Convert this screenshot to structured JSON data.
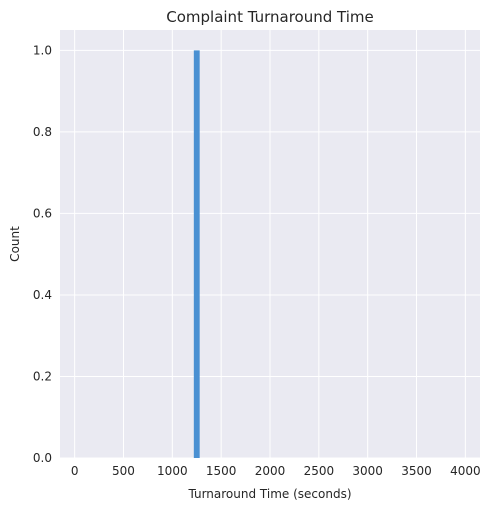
{
  "chart_data": {
    "type": "bar",
    "title": "Complaint Turnaround Time",
    "xlabel": "Turnaround Time (seconds)",
    "ylabel": "Count",
    "xlim": [
      -150,
      4150
    ],
    "ylim": [
      0,
      1.05
    ],
    "x_ticks": [
      0,
      500,
      1000,
      1500,
      2000,
      2500,
      3000,
      3500,
      4000
    ],
    "y_ticks": [
      0.0,
      0.2,
      0.4,
      0.6,
      0.8,
      1.0
    ],
    "x_tick_labels": [
      "0",
      "500",
      "1000",
      "1500",
      "2000",
      "2500",
      "3000",
      "3500",
      "4000"
    ],
    "y_tick_labels": [
      "0.0",
      "0.2",
      "0.4",
      "0.6",
      "0.8",
      "1.0"
    ],
    "bins": [
      {
        "x_start": 1220,
        "x_end": 1280,
        "count": 1
      }
    ],
    "grid": true,
    "colors": {
      "plot_background": "#eaeaf2",
      "grid": "#ffffff",
      "bar": "#4a90d2"
    }
  }
}
